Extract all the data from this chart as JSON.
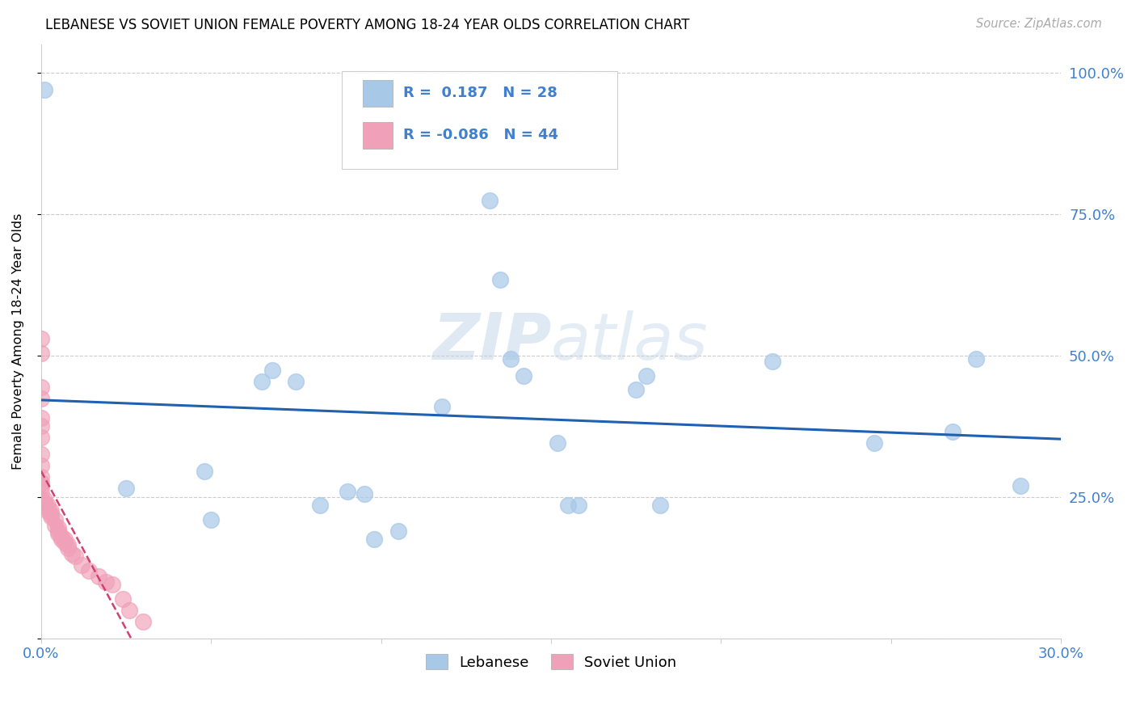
{
  "title": "LEBANESE VS SOVIET UNION FEMALE POVERTY AMONG 18-24 YEAR OLDS CORRELATION CHART",
  "source": "Source: ZipAtlas.com",
  "ylabel_label": "Female Poverty Among 18-24 Year Olds",
  "xlim": [
    0.0,
    0.3
  ],
  "ylim": [
    0.0,
    1.05
  ],
  "xticks": [
    0.0,
    0.05,
    0.1,
    0.15,
    0.2,
    0.25,
    0.3
  ],
  "yticks": [
    0.0,
    0.25,
    0.5,
    0.75,
    1.0
  ],
  "legend_labels": [
    "Lebanese",
    "Soviet Union"
  ],
  "legend_r_blue": "R =  0.187",
  "legend_n_blue": "N = 28",
  "legend_r_pink": "R = -0.086",
  "legend_n_pink": "N = 44",
  "blue_color": "#a8c8e8",
  "pink_color": "#f0a0b8",
  "blue_line_color": "#2060b0",
  "pink_line_color": "#d04070",
  "axis_label_color": "#4080d0",
  "grid_color": "#cccccc",
  "watermark_color": "#c5d8ec",
  "blue_x": [
    0.001,
    0.025,
    0.048,
    0.05,
    0.065,
    0.068,
    0.075,
    0.082,
    0.09,
    0.095,
    0.098,
    0.105,
    0.118,
    0.132,
    0.135,
    0.138,
    0.142,
    0.152,
    0.155,
    0.158,
    0.175,
    0.178,
    0.182,
    0.215,
    0.245,
    0.268,
    0.275,
    0.288
  ],
  "blue_y": [
    0.97,
    0.265,
    0.295,
    0.21,
    0.455,
    0.475,
    0.455,
    0.235,
    0.26,
    0.255,
    0.175,
    0.19,
    0.41,
    0.775,
    0.635,
    0.495,
    0.465,
    0.345,
    0.235,
    0.235,
    0.44,
    0.465,
    0.235,
    0.49,
    0.345,
    0.365,
    0.495,
    0.27
  ],
  "pink_x": [
    0.0,
    0.0,
    0.0,
    0.0,
    0.0,
    0.0,
    0.0,
    0.0,
    0.0,
    0.0,
    0.0,
    0.0,
    0.0,
    0.0,
    0.001,
    0.001,
    0.001,
    0.002,
    0.002,
    0.002,
    0.003,
    0.003,
    0.003,
    0.004,
    0.004,
    0.005,
    0.005,
    0.005,
    0.006,
    0.006,
    0.007,
    0.007,
    0.008,
    0.008,
    0.009,
    0.01,
    0.012,
    0.014,
    0.017,
    0.019,
    0.021,
    0.024,
    0.026,
    0.03
  ],
  "pink_y": [
    0.53,
    0.505,
    0.445,
    0.425,
    0.39,
    0.375,
    0.355,
    0.325,
    0.305,
    0.285,
    0.275,
    0.27,
    0.26,
    0.245,
    0.245,
    0.24,
    0.235,
    0.235,
    0.23,
    0.225,
    0.225,
    0.22,
    0.215,
    0.21,
    0.2,
    0.195,
    0.19,
    0.185,
    0.18,
    0.175,
    0.175,
    0.17,
    0.165,
    0.16,
    0.15,
    0.145,
    0.13,
    0.12,
    0.11,
    0.1,
    0.095,
    0.07,
    0.05,
    0.03
  ]
}
